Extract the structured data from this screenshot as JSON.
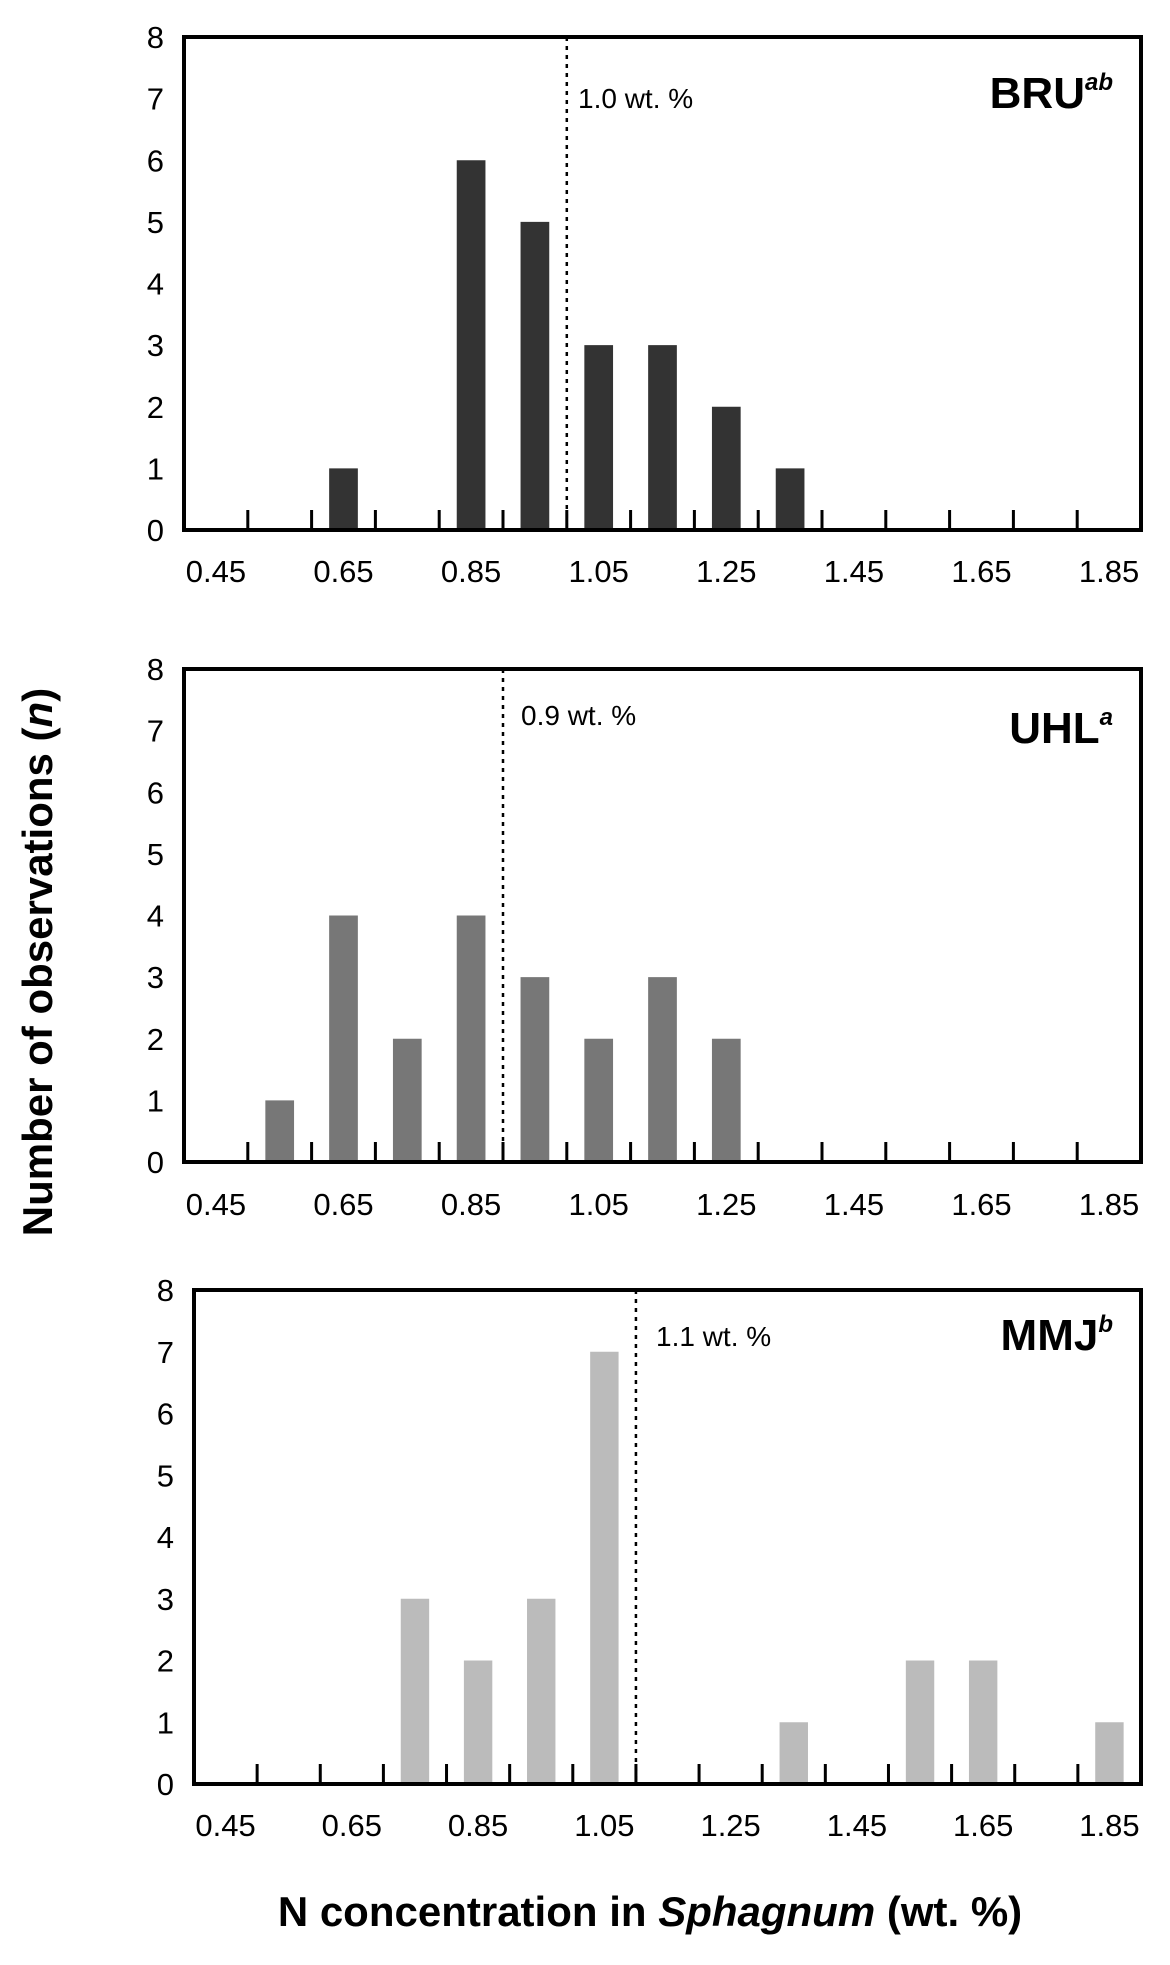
{
  "chart_data": [
    {
      "type": "bar",
      "title": "BRU",
      "title_superscript": "ab",
      "categories": [
        "0.45",
        "0.65",
        "0.85",
        "1.05",
        "1.25",
        "1.45",
        "1.65",
        "1.85"
      ],
      "x": [
        0.65,
        0.85,
        0.95,
        1.05,
        1.15,
        1.25,
        1.35
      ],
      "values": [
        1,
        6,
        5,
        3,
        3,
        2,
        1
      ],
      "ylim": [
        0,
        8
      ],
      "xlim": [
        0.4,
        1.9
      ],
      "yticks": [
        "0",
        "1",
        "2",
        "3",
        "4",
        "5",
        "6",
        "7",
        "8"
      ],
      "reference_line": {
        "x": 1.0,
        "label": "1.0 wt. %"
      },
      "color": "#333333"
    },
    {
      "type": "bar",
      "title": "UHL",
      "title_superscript": "a",
      "categories": [
        "0.45",
        "0.65",
        "0.85",
        "1.05",
        "1.25",
        "1.45",
        "1.65",
        "1.85"
      ],
      "x": [
        0.55,
        0.65,
        0.75,
        0.85,
        0.95,
        1.05,
        1.15,
        1.25
      ],
      "values": [
        1,
        4,
        2,
        4,
        3,
        2,
        3,
        2
      ],
      "ylim": [
        0,
        8
      ],
      "xlim": [
        0.4,
        1.9
      ],
      "yticks": [
        "0",
        "1",
        "2",
        "3",
        "4",
        "5",
        "6",
        "7",
        "8"
      ],
      "reference_line": {
        "x": 0.9,
        "label": "0.9 wt. %"
      },
      "color": "#777777"
    },
    {
      "type": "bar",
      "title": "MMJ",
      "title_superscript": "b",
      "categories": [
        "0.45",
        "0.65",
        "0.85",
        "1.05",
        "1.25",
        "1.45",
        "1.65",
        "1.85"
      ],
      "x": [
        0.75,
        0.85,
        0.95,
        1.05,
        1.35,
        1.55,
        1.65,
        1.85
      ],
      "values": [
        3,
        2,
        3,
        7,
        1,
        2,
        2,
        1
      ],
      "ylim": [
        0,
        8
      ],
      "xlim": [
        0.4,
        1.9
      ],
      "yticks": [
        "0",
        "1",
        "2",
        "3",
        "4",
        "5",
        "6",
        "7",
        "8"
      ],
      "reference_line": {
        "x": 1.1,
        "label": "1.1 wt. %"
      },
      "color": "#bbbbbb"
    }
  ],
  "ylabel": {
    "prefix": "Number of observations (",
    "italic": "n",
    "suffix": ")"
  },
  "xlabel": {
    "prefix": "N concentration in ",
    "italic": "Sphagnum",
    "suffix": " (wt. %)"
  }
}
